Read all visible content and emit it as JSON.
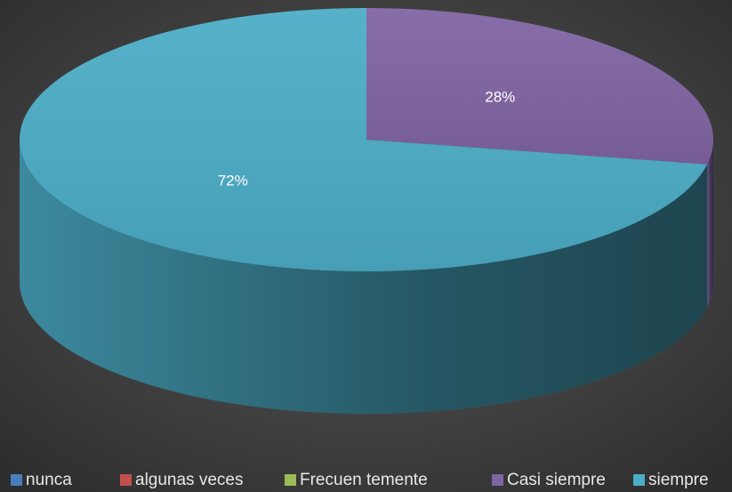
{
  "chart_data": {
    "type": "pie",
    "categories": [
      "nunca",
      "algunas veces",
      "Frecuen temente",
      "Casi siempre",
      "siempre"
    ],
    "values": [
      0,
      0,
      0,
      28,
      72
    ],
    "value_labels": [
      null,
      null,
      null,
      "28%",
      "72%"
    ],
    "colors": [
      "#4a7ebb",
      "#c0504d",
      "#9bbb59",
      "#8064a2",
      "#4bacc6"
    ],
    "legend": "bottom"
  }
}
